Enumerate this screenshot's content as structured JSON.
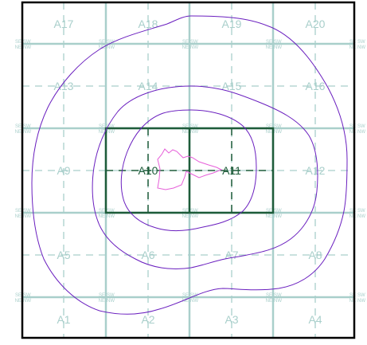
{
  "cells": [
    {
      "label": "A17"
    },
    {
      "label": "A18"
    },
    {
      "label": "A19"
    },
    {
      "label": "A20"
    },
    {
      "label": "A13"
    },
    {
      "label": "A14"
    },
    {
      "label": "A15"
    },
    {
      "label": "A16"
    },
    {
      "label": "A9"
    },
    {
      "label": "A10"
    },
    {
      "label": "A11"
    },
    {
      "label": "A12"
    },
    {
      "label": "A5"
    },
    {
      "label": "A6"
    },
    {
      "label": "A7"
    },
    {
      "label": "A8"
    },
    {
      "label": "A1"
    },
    {
      "label": "A2"
    },
    {
      "label": "A3"
    },
    {
      "label": "A4"
    }
  ],
  "corner_marks": {
    "se": "SE",
    "sw": "SW",
    "ne": "NE",
    "nw": "NW"
  },
  "highlight": {
    "cells": [
      "A10",
      "A11"
    ],
    "color": "#1e5c3a"
  },
  "colors": {
    "grid": "#a9cfcb",
    "outline": "#000000",
    "highlight": "#1e5c3a",
    "contour": "#6a1fbf",
    "core": "#e65fd9"
  }
}
